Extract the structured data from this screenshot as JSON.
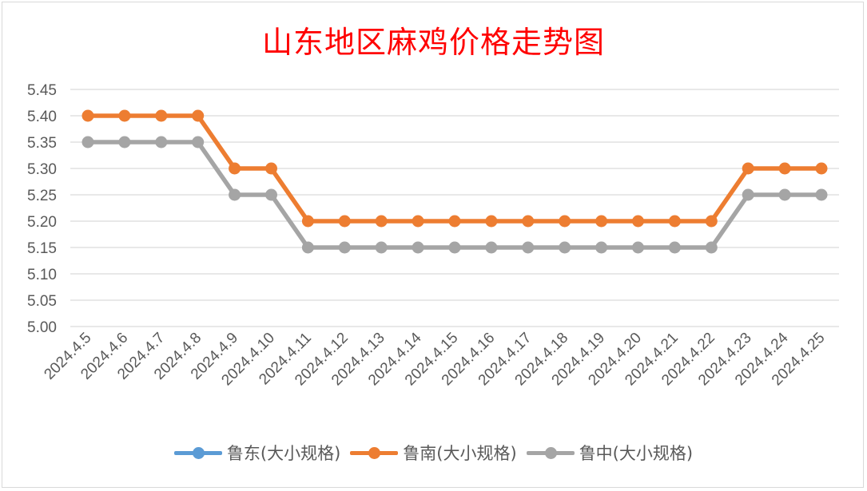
{
  "chart_data": {
    "type": "line",
    "title": "山东地区麻鸡价格走势图",
    "xlabel": "",
    "ylabel": "",
    "ylim": [
      5.0,
      5.45
    ],
    "yticks": [
      "5.00",
      "5.05",
      "5.10",
      "5.15",
      "5.20",
      "5.25",
      "5.30",
      "5.35",
      "5.40",
      "5.45"
    ],
    "grid": true,
    "legend_position": "bottom",
    "categories": [
      "2024.4.5",
      "2024.4.6",
      "2024.4.7",
      "2024.4.8",
      "2024.4.9",
      "2024.4.10",
      "2024.4.11",
      "2024.4.12",
      "2024.4.13",
      "2024.4.14",
      "2024.4.15",
      "2024.4.16",
      "2024.4.17",
      "2024.4.18",
      "2024.4.19",
      "2024.4.20",
      "2024.4.21",
      "2024.4.22",
      "2024.4.23",
      "2024.4.24",
      "2024.4.25"
    ],
    "series": [
      {
        "name": "鲁东(大小规格)",
        "color": "#5b9bd5",
        "values": null
      },
      {
        "name": "鲁南(大小规格)",
        "color": "#ed7d31",
        "values": [
          5.4,
          5.4,
          5.4,
          5.4,
          5.3,
          5.3,
          5.2,
          5.2,
          5.2,
          5.2,
          5.2,
          5.2,
          5.2,
          5.2,
          5.2,
          5.2,
          5.2,
          5.2,
          5.3,
          5.3,
          5.3
        ]
      },
      {
        "name": "鲁中(大小规格)",
        "color": "#a5a5a5",
        "values": [
          5.35,
          5.35,
          5.35,
          5.35,
          5.25,
          5.25,
          5.15,
          5.15,
          5.15,
          5.15,
          5.15,
          5.15,
          5.15,
          5.15,
          5.15,
          5.15,
          5.15,
          5.15,
          5.25,
          5.25,
          5.25
        ]
      }
    ]
  },
  "colors": {
    "title": "#ff0000",
    "grid": "#d9d9d9",
    "text": "#595959"
  }
}
